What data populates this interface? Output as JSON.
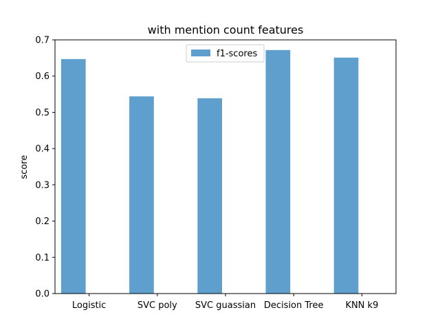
{
  "chart_data": {
    "type": "bar",
    "title": "with mention count features",
    "xlabel": "",
    "ylabel": "score",
    "categories": [
      "Logistic",
      "SVC poly",
      "SVC guassian",
      "Decision Tree",
      "KNN k9"
    ],
    "series": [
      {
        "name": "f1-scores",
        "values": [
          0.647,
          0.544,
          0.539,
          0.672,
          0.651
        ],
        "color": "#5f9fcd"
      }
    ],
    "ylim": [
      0,
      0.7
    ],
    "yticks": [
      "0.0",
      "0.1",
      "0.2",
      "0.3",
      "0.4",
      "0.5",
      "0.6",
      "0.7"
    ],
    "grid": false,
    "legend_position": "top-center"
  }
}
